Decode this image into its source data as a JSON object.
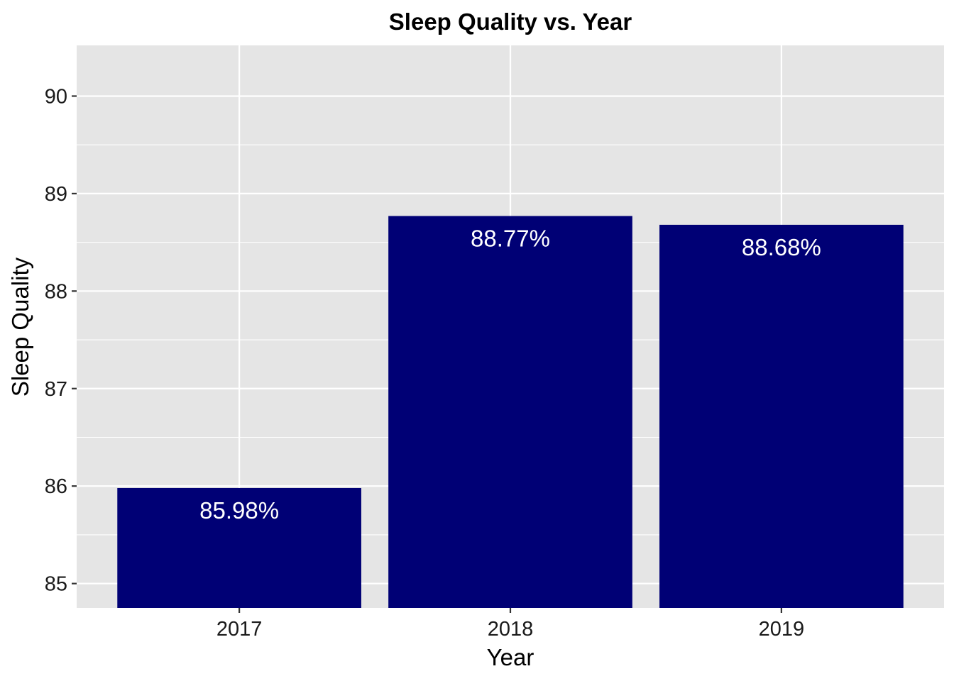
{
  "chart_data": {
    "type": "bar",
    "title": "Sleep Quality vs. Year",
    "xlabel": "Year",
    "ylabel": "Sleep Quality",
    "categories": [
      "2017",
      "2018",
      "2019"
    ],
    "values": [
      85.98,
      88.77,
      88.68
    ],
    "data_labels": [
      "85.98%",
      "88.77%",
      "88.68%"
    ],
    "ylim": [
      84.75,
      90.52
    ],
    "yticks": [
      85,
      86,
      87,
      88,
      89,
      90
    ],
    "grid": true,
    "legend": "none",
    "colors": {
      "bar": "#000075",
      "panel_background": "#e5e5e5",
      "grid": "#ffffff",
      "data_label": "#ffffff"
    }
  }
}
